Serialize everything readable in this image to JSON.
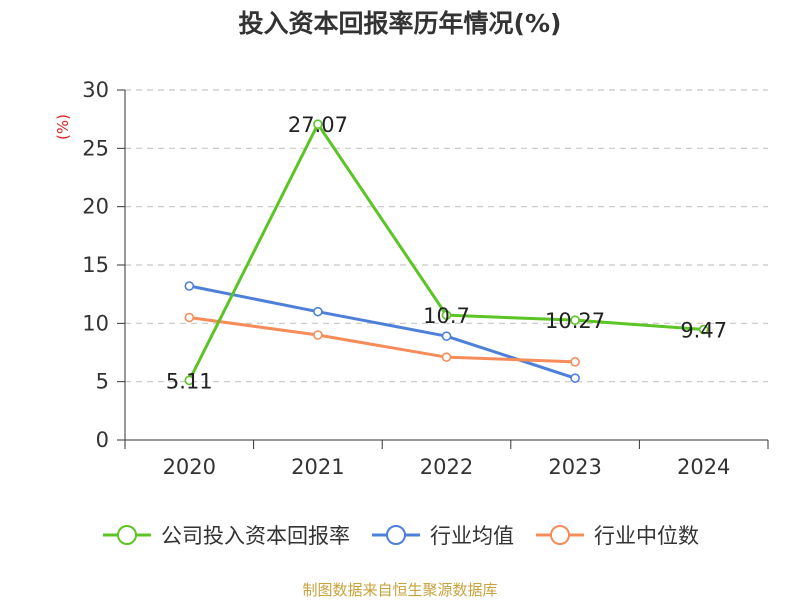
{
  "chart_data": {
    "type": "line",
    "title": "投入资本回报率历年情况(%)",
    "ylabel": "(%)",
    "xlabel": "",
    "categories": [
      "2020",
      "2021",
      "2022",
      "2023",
      "2024"
    ],
    "ylim": [
      0,
      30
    ],
    "yticks": [
      "0",
      "5",
      "10",
      "15",
      "20",
      "25",
      "30"
    ],
    "grid": true,
    "legend_position": "bottom",
    "series": [
      {
        "name": "公司投入资本回报率",
        "color": "#5cc424",
        "values": [
          5.11,
          27.07,
          10.7,
          10.27,
          9.47
        ],
        "labels": [
          "5.11",
          "27.07",
          "10.7",
          "10.27",
          "9.47"
        ]
      },
      {
        "name": "行业均值",
        "color": "#4e7fd9",
        "values": [
          13.2,
          11.0,
          8.9,
          5.3,
          null
        ]
      },
      {
        "name": "行业中位数",
        "color": "#f58c5a",
        "values": [
          10.5,
          9.0,
          7.1,
          6.7,
          null
        ]
      }
    ]
  },
  "source": "制图数据来自恒生聚源数据库"
}
